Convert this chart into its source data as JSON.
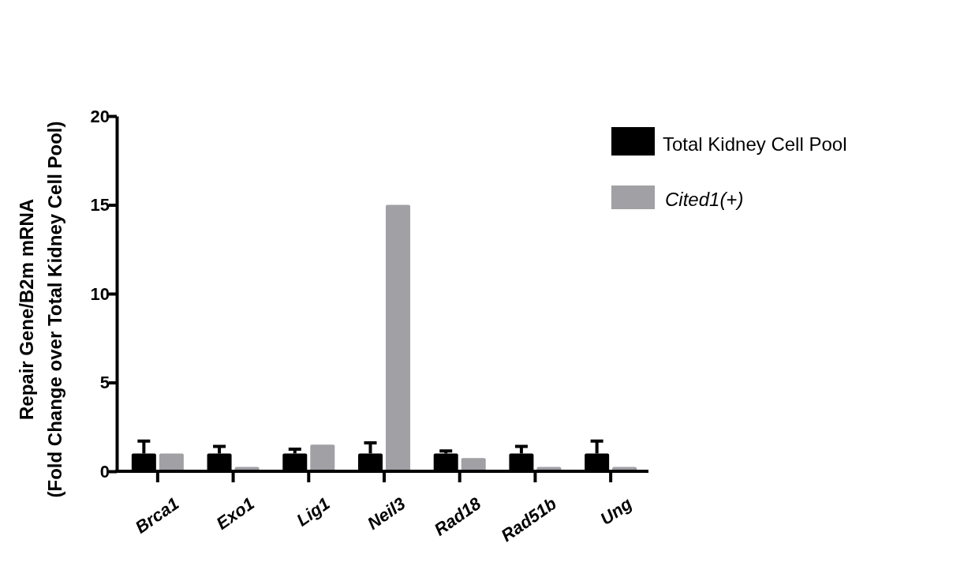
{
  "chart_data": {
    "type": "bar",
    "ylabel": "Repair Gene/B2m mRNA\n(Fold Change over Total Kidney Cell Pool)",
    "categories": [
      "Brca1",
      "Exo1",
      "Lig1",
      "Neil3",
      "Rad18",
      "Rad51b",
      "Ung"
    ],
    "series": [
      {
        "name": "Total Kidney Cell Pool",
        "color": "#000000",
        "values": [
          1,
          1,
          1,
          1,
          1,
          1,
          1
        ],
        "errors": [
          [
            1,
            1.7
          ],
          [
            1,
            1.4
          ],
          [
            1,
            1.25
          ],
          [
            1,
            1.6
          ],
          [
            1,
            1.15
          ],
          [
            1,
            1.4
          ],
          [
            1,
            1.7
          ]
        ]
      },
      {
        "name": "Cited1(+)",
        "color": "#a0a0a5",
        "values": [
          1,
          0.25,
          1.5,
          15,
          0.75,
          0.25,
          0.25
        ]
      }
    ],
    "ylim": [
      0,
      20
    ],
    "yticks": [
      0,
      5,
      10,
      15,
      20
    ],
    "legend": "top right"
  }
}
